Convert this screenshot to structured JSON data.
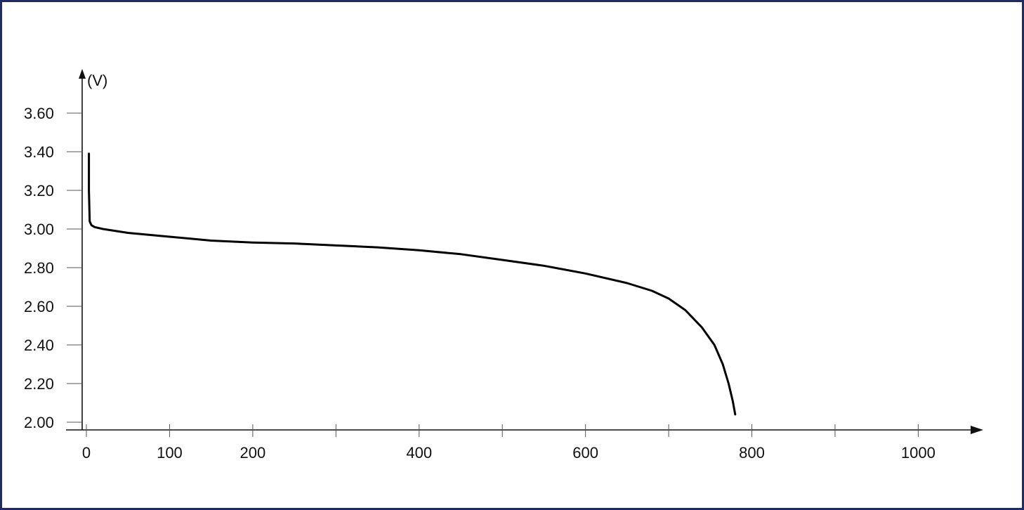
{
  "chart_data": {
    "type": "line",
    "title": "",
    "xlabel": "",
    "ylabel": "(V)",
    "xlim": [
      0,
      1100
    ],
    "ylim": [
      2.0,
      3.6
    ],
    "x_ticks": [
      0,
      100,
      200,
      300,
      400,
      500,
      600,
      700,
      800,
      900,
      1000
    ],
    "x_tick_labels": [
      "0",
      "100",
      "200",
      "",
      "400",
      "",
      "600",
      "",
      "800",
      "",
      "1000"
    ],
    "y_ticks": [
      2.0,
      2.2,
      2.4,
      2.6,
      2.8,
      3.0,
      3.2,
      3.4,
      3.6
    ],
    "y_tick_labels": [
      "2.00",
      "2.20",
      "2.40",
      "2.60",
      "2.80",
      "3.00",
      "3.20",
      "3.40",
      "3.60"
    ],
    "grid": false,
    "legend": "none",
    "series": [
      {
        "x": [
          3,
          3,
          4,
          6,
          10,
          20,
          50,
          100,
          150,
          200,
          250,
          300,
          350,
          400,
          450,
          500,
          550,
          600,
          650,
          680,
          700,
          720,
          740,
          755,
          765,
          772,
          777,
          780
        ],
        "values": [
          3.39,
          3.2,
          3.04,
          3.02,
          3.01,
          3.0,
          2.98,
          2.96,
          2.94,
          2.93,
          2.925,
          2.915,
          2.905,
          2.89,
          2.87,
          2.84,
          2.81,
          2.77,
          2.72,
          2.68,
          2.64,
          2.58,
          2.49,
          2.4,
          2.3,
          2.2,
          2.11,
          2.04
        ]
      }
    ],
    "colors": {
      "line": "#000000",
      "axis": "#111111",
      "tick": "#555555",
      "frame": "#1f2a66"
    }
  }
}
